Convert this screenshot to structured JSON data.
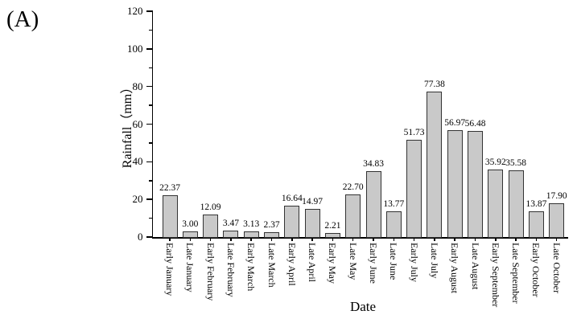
{
  "panel_label": "(A)",
  "chart_data": {
    "type": "bar",
    "title": "",
    "xlabel": "Date",
    "ylabel": "Rainfall（mm）",
    "ylim": [
      0,
      120
    ],
    "yticks": [
      0,
      20,
      40,
      60,
      80,
      100,
      120
    ],
    "minor_ytick_interval": 10,
    "grid": false,
    "legend": false,
    "value_labels_shown": true,
    "value_label_decimals": 2,
    "categories": [
      "Early January",
      "Late January",
      "Early February",
      "Late February",
      "Early March",
      "Late March",
      "Early April",
      "Late April",
      "Early May",
      "Late May",
      "Early June",
      "Late June",
      "Early July",
      "Late July",
      "Early August",
      "Late August",
      "Early September",
      "Late September",
      "Early October",
      "Late October"
    ],
    "values": [
      22.37,
      3.0,
      12.09,
      3.47,
      3.13,
      2.37,
      16.64,
      14.97,
      2.21,
      22.7,
      34.83,
      13.77,
      51.73,
      77.38,
      56.97,
      56.48,
      35.92,
      35.58,
      13.87,
      17.9
    ],
    "colors": {
      "bar_fill": "#c9c9c9",
      "bar_border": "#333333",
      "axis": "#000000",
      "text": "#000000"
    }
  }
}
